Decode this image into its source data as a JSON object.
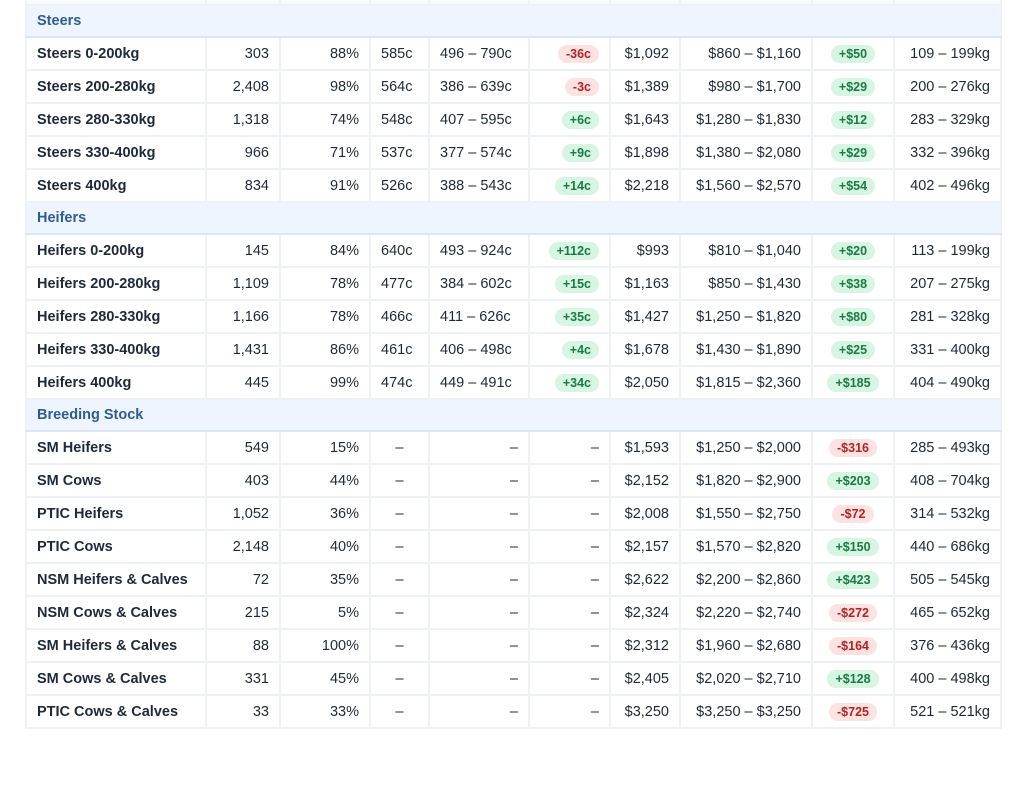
{
  "colors": {
    "group_bg": "#eef5ff",
    "group_text": "#2c5d94",
    "negative_bg": "#fde2e2",
    "negative_text": "#b42323",
    "positive_bg": "#d6f5e2",
    "positive_text": "#1c7a45"
  },
  "groups": [
    {
      "label": "Steers",
      "rows": [
        [
          "Steers 0-200kg",
          "303",
          "88%",
          "585c",
          "496 – 790c",
          "-36c",
          "$1,092",
          "$860 – $1,160",
          "+$50",
          "109 – 199kg"
        ],
        [
          "Steers 200-280kg",
          "2,408",
          "98%",
          "564c",
          "386 – 639c",
          "-3c",
          "$1,389",
          "$980 – $1,700",
          "+$29",
          "200 – 276kg"
        ],
        [
          "Steers 280-330kg",
          "1,318",
          "74%",
          "548c",
          "407 – 595c",
          "+6c",
          "$1,643",
          "$1,280 – $1,830",
          "+$12",
          "283 – 329kg"
        ],
        [
          "Steers 330-400kg",
          "966",
          "71%",
          "537c",
          "377 – 574c",
          "+9c",
          "$1,898",
          "$1,380 – $2,080",
          "+$29",
          "332 – 396kg"
        ],
        [
          "Steers 400kg",
          "834",
          "91%",
          "526c",
          "388 – 543c",
          "+14c",
          "$2,218",
          "$1,560 – $2,570",
          "+$54",
          "402 – 496kg"
        ]
      ]
    },
    {
      "label": "Heifers",
      "rows": [
        [
          "Heifers 0-200kg",
          "145",
          "84%",
          "640c",
          "493 – 924c",
          "+112c",
          "$993",
          "$810 – $1,040",
          "+$20",
          "113 – 199kg"
        ],
        [
          "Heifers 200-280kg",
          "1,109",
          "78%",
          "477c",
          "384 – 602c",
          "+15c",
          "$1,163",
          "$850 – $1,430",
          "+$38",
          "207 – 275kg"
        ],
        [
          "Heifers 280-330kg",
          "1,166",
          "78%",
          "466c",
          "411 – 626c",
          "+35c",
          "$1,427",
          "$1,250 – $1,820",
          "+$80",
          "281 – 328kg"
        ],
        [
          "Heifers 330-400kg",
          "1,431",
          "86%",
          "461c",
          "406 – 498c",
          "+4c",
          "$1,678",
          "$1,430 – $1,890",
          "+$25",
          "331 – 400kg"
        ],
        [
          "Heifers 400kg",
          "445",
          "99%",
          "474c",
          "449 – 491c",
          "+34c",
          "$2,050",
          "$1,815 – $2,360",
          "+$185",
          "404 – 490kg"
        ]
      ]
    },
    {
      "label": "Breeding Stock",
      "rows": [
        [
          "SM Heifers",
          "549",
          "15%",
          "–",
          "–",
          "–",
          "$1,593",
          "$1,250 – $2,000",
          "-$316",
          "285 – 493kg"
        ],
        [
          "SM Cows",
          "403",
          "44%",
          "–",
          "–",
          "–",
          "$2,152",
          "$1,820 – $2,900",
          "+$203",
          "408 – 704kg"
        ],
        [
          "PTIC Heifers",
          "1,052",
          "36%",
          "–",
          "–",
          "–",
          "$2,008",
          "$1,550 – $2,750",
          "-$72",
          "314 – 532kg"
        ],
        [
          "PTIC Cows",
          "2,148",
          "40%",
          "–",
          "–",
          "–",
          "$2,157",
          "$1,570 – $2,820",
          "+$150",
          "440 – 686kg"
        ],
        [
          "NSM Heifers & Calves",
          "72",
          "35%",
          "–",
          "–",
          "–",
          "$2,622",
          "$2,200 – $2,860",
          "+$423",
          "505 – 545kg"
        ],
        [
          "NSM Cows & Calves",
          "215",
          "5%",
          "–",
          "–",
          "–",
          "$2,324",
          "$2,220 – $2,740",
          "-$272",
          "465 – 652kg"
        ],
        [
          "SM Heifers & Calves",
          "88",
          "100%",
          "–",
          "–",
          "–",
          "$2,312",
          "$1,960 – $2,680",
          "-$164",
          "376 – 436kg"
        ],
        [
          "SM Cows & Calves",
          "331",
          "45%",
          "–",
          "–",
          "–",
          "$2,405",
          "$2,020 – $2,710",
          "+$128",
          "400 – 498kg"
        ],
        [
          "PTIC Cows & Calves",
          "33",
          "33%",
          "–",
          "–",
          "–",
          "$3,250",
          "$3,250 – $3,250",
          "-$725",
          "521 – 521kg"
        ]
      ]
    }
  ]
}
